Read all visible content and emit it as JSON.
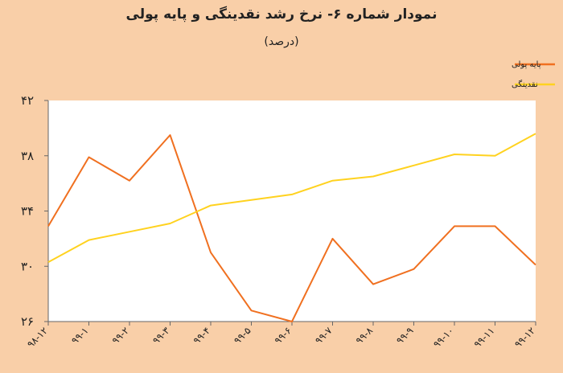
{
  "chart_data": {
    "type": "line",
    "title": "نمودار شماره ۶- نرخ رشد نقدینگی و پایه پولی",
    "subtitle": "(درصد)",
    "categories": [
      "۹۸-۱۲",
      "۹۹-۱",
      "۹۹-۲",
      "۹۹-۳",
      "۹۹-۴",
      "۹۹-۵",
      "۹۹-۶",
      "۹۹-۷",
      "۹۹-۸",
      "۹۹-۹",
      "۹۹-۱۰",
      "۹۹-۱۱",
      "۹۹-۱۲"
    ],
    "series": [
      {
        "name": "پایه پولی",
        "color": "#f07020",
        "values": [
          32.9,
          37.9,
          36.2,
          39.5,
          31.0,
          26.8,
          26.0,
          32.0,
          28.7,
          29.8,
          32.9,
          32.9,
          30.1
        ]
      },
      {
        "name": "نقدینگی",
        "color": "#ffd21f",
        "values": [
          30.3,
          31.9,
          32.5,
          33.1,
          34.4,
          34.8,
          35.2,
          36.2,
          36.5,
          37.3,
          38.1,
          38.0,
          39.6
        ]
      }
    ],
    "ylim": [
      26,
      42
    ],
    "yticks": [
      26,
      30,
      34,
      38,
      42
    ],
    "ytick_labels": [
      "۲۶",
      "۳۰",
      "۳۴",
      "۳۸",
      "۴۲"
    ],
    "grid": false,
    "legend": "top-right"
  }
}
